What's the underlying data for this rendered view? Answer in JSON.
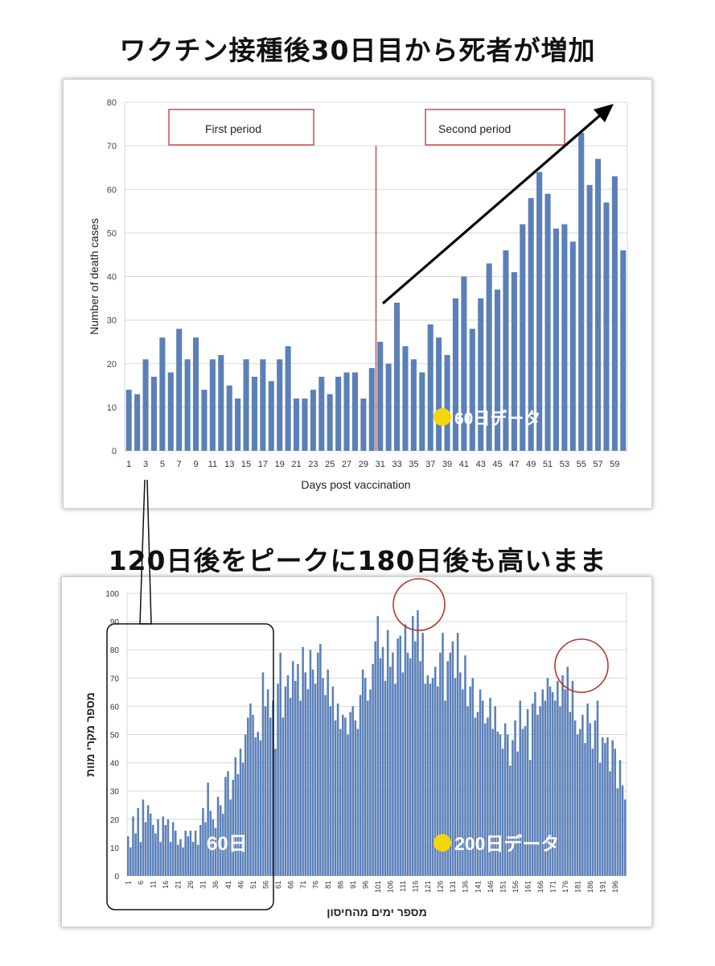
{
  "headline_top": "ワクチン接種後30日目から死者が増加",
  "headline_middle": "120日後をピークに180日後も高いまま",
  "colors": {
    "bar": "#5b80b8",
    "period_box": "#c0504d",
    "marker": "#f5d60a",
    "circle": "#b33a2a"
  },
  "chart_data": [
    {
      "type": "bar",
      "title": "",
      "xlabel": "Days post vaccination",
      "ylabel": "Number of death cases",
      "ylim": [
        0,
        80
      ],
      "yticks": [
        0,
        10,
        20,
        30,
        40,
        50,
        60,
        70,
        80
      ],
      "xtick_labels": [
        "1",
        "3",
        "5",
        "7",
        "9",
        "11",
        "13",
        "15",
        "17",
        "19",
        "21",
        "23",
        "25",
        "27",
        "29",
        "31",
        "33",
        "35",
        "37",
        "39",
        "41",
        "43",
        "45",
        "47",
        "49",
        "51",
        "53",
        "55",
        "57",
        "59"
      ],
      "grid": true,
      "annotations": {
        "first_period": "First period",
        "second_period": "Second period",
        "divider_after_day": 30,
        "arrow": "upward trend from day 31 to day 60",
        "data_badge": "60日データ"
      },
      "x": [
        1,
        2,
        3,
        4,
        5,
        6,
        7,
        8,
        9,
        10,
        11,
        12,
        13,
        14,
        15,
        16,
        17,
        18,
        19,
        20,
        21,
        22,
        23,
        24,
        25,
        26,
        27,
        28,
        29,
        30,
        31,
        32,
        33,
        34,
        35,
        36,
        37,
        38,
        39,
        40,
        41,
        42,
        43,
        44,
        45,
        46,
        47,
        48,
        49,
        50,
        51,
        52,
        53,
        54,
        55,
        56,
        57,
        58,
        59,
        60
      ],
      "values": [
        14,
        13,
        21,
        17,
        26,
        18,
        28,
        21,
        26,
        14,
        21,
        22,
        15,
        12,
        21,
        17,
        21,
        16,
        21,
        24,
        12,
        12,
        14,
        17,
        13,
        17,
        18,
        18,
        12,
        19,
        25,
        20,
        34,
        24,
        21,
        18,
        29,
        26,
        22,
        35,
        40,
        28,
        35,
        43,
        37,
        46,
        41,
        52,
        58,
        64,
        59,
        51,
        52,
        48,
        73,
        61,
        67,
        57,
        63,
        46
      ]
    },
    {
      "type": "bar",
      "title": "",
      "xlabel": "מספר ימים מהחיסון",
      "ylabel": "מספר מקרי מוות",
      "ylim": [
        0,
        100
      ],
      "yticks": [
        0,
        10,
        20,
        30,
        40,
        50,
        60,
        70,
        80,
        90,
        100
      ],
      "xtick_labels": [
        "1",
        "6",
        "11",
        "16",
        "21",
        "26",
        "31",
        "36",
        "41",
        "46",
        "51",
        "56",
        "61",
        "66",
        "71",
        "76",
        "81",
        "86",
        "91",
        "96",
        "101",
        "106",
        "111",
        "116",
        "121",
        "126",
        "131",
        "136",
        "141",
        "146",
        "151",
        "156",
        "161",
        "166",
        "171",
        "176",
        "181",
        "186",
        "191",
        "196"
      ],
      "grid": true,
      "annotations": {
        "left_box_label": "60日",
        "data_badge": "200日データ",
        "peak_circles": [
          "around day 120",
          "around day 180"
        ]
      },
      "x_start": 1,
      "values": [
        14,
        10,
        21,
        15,
        24,
        12,
        27,
        19,
        25,
        22,
        18,
        15,
        20,
        12,
        21,
        18,
        20,
        12,
        19,
        16,
        11,
        13,
        10,
        16,
        14,
        16,
        12,
        16,
        11,
        18,
        24,
        19,
        33,
        23,
        20,
        17,
        28,
        25,
        22,
        35,
        37,
        27,
        34,
        42,
        36,
        45,
        40,
        50,
        56,
        61,
        57,
        49,
        51,
        48,
        72,
        60,
        66,
        56,
        62,
        45,
        68,
        79,
        56,
        67,
        71,
        63,
        76,
        69,
        75,
        62,
        81,
        72,
        66,
        80,
        73,
        68,
        79,
        82,
        70,
        64,
        73,
        60,
        67,
        55,
        61,
        52,
        57,
        56,
        50,
        58,
        60,
        55,
        52,
        64,
        73,
        70,
        62,
        66,
        75,
        83,
        92,
        77,
        81,
        69,
        87,
        74,
        79,
        68,
        84,
        85,
        72,
        89,
        79,
        77,
        92,
        83,
        94,
        76,
        86,
        68,
        71,
        68,
        70,
        74,
        67,
        79,
        86,
        62,
        76,
        79,
        83,
        70,
        86,
        72,
        66,
        78,
        60,
        67,
        70,
        56,
        58,
        66,
        62,
        54,
        56,
        63,
        52,
        60,
        51,
        50,
        45,
        54,
        50,
        39,
        48,
        55,
        44,
        62,
        52,
        53,
        59,
        41,
        61,
        65,
        57,
        60,
        66,
        62,
        70,
        67,
        65,
        62,
        69,
        60,
        71,
        66,
        74,
        58,
        69,
        55,
        50,
        52,
        57,
        47,
        61,
        54,
        45,
        55,
        62,
        40,
        49,
        47,
        49,
        37,
        48,
        45,
        31,
        41,
        32,
        27
      ]
    }
  ]
}
